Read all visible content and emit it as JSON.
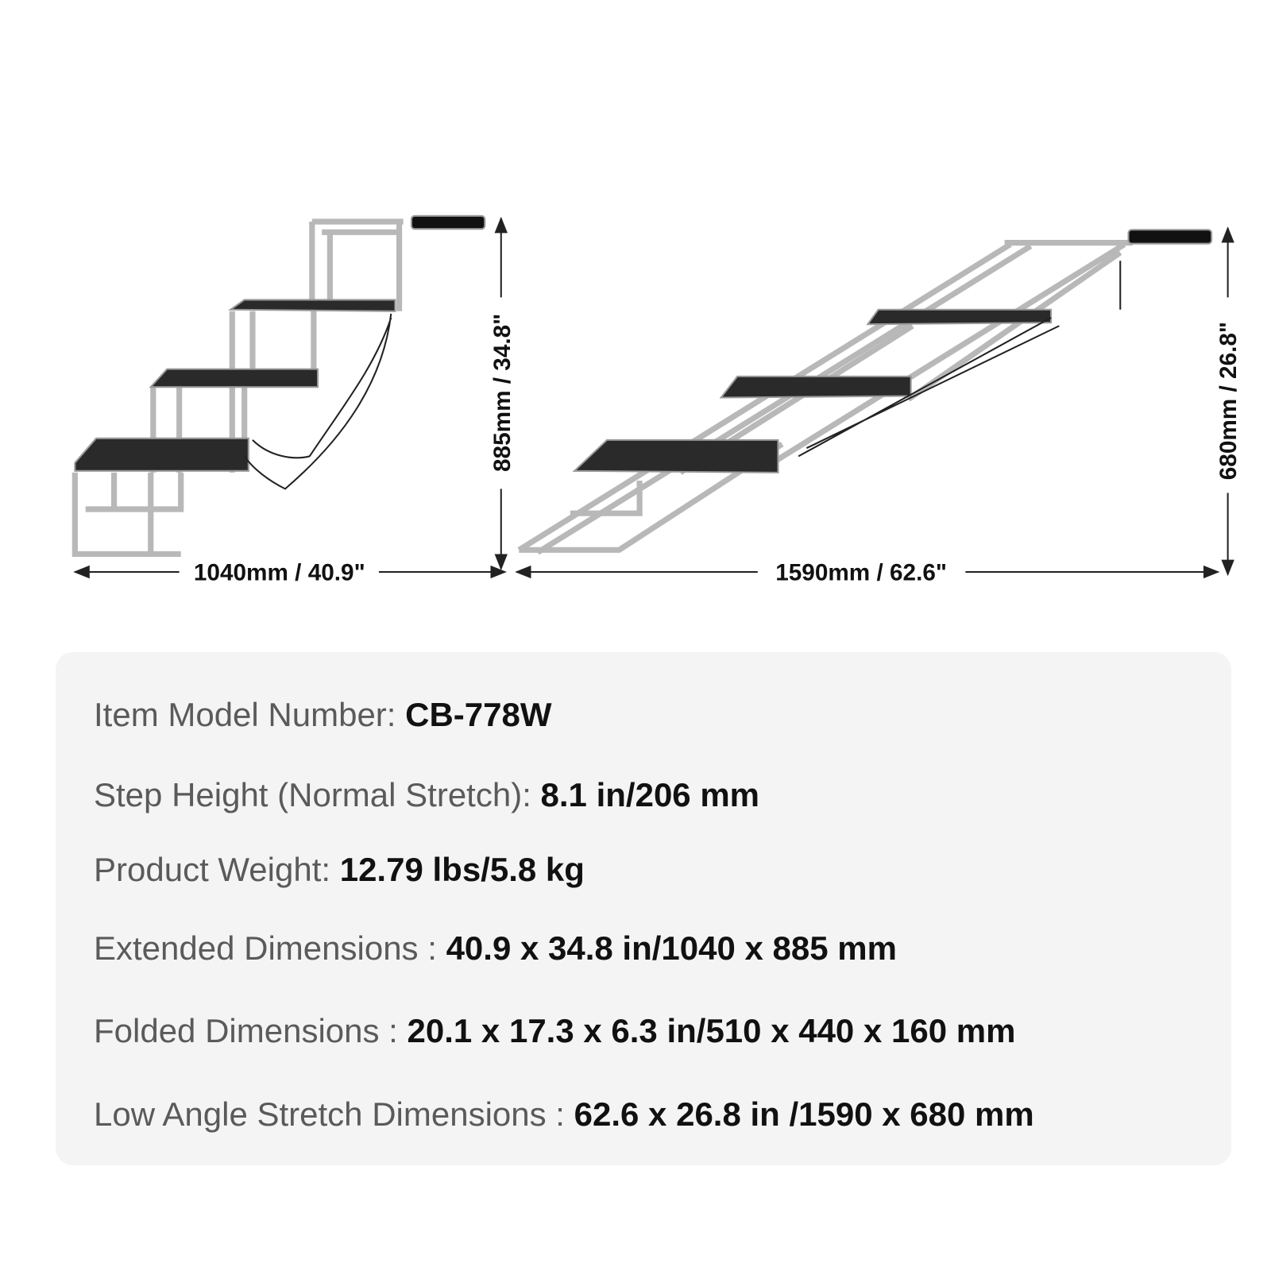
{
  "diagrams": {
    "extended": {
      "width_label": "1040mm / 40.9\"",
      "height_label": "885mm / 34.8\""
    },
    "low_angle": {
      "width_label": "1590mm / 62.6\"",
      "height_label": "680mm / 26.8\""
    }
  },
  "specs": [
    {
      "label": "Item Model Number: ",
      "value": "CB-778W"
    },
    {
      "label": "Step Height (Normal Stretch): ",
      "value": "8.1 in/206 mm"
    },
    {
      "label": "Product Weight: ",
      "value": "12.79 lbs/5.8 kg"
    },
    {
      "label": "Extended Dimensions : ",
      "value": "40.9 x 34.8 in/1040 x 885 mm"
    },
    {
      "label": "Folded Dimensions : ",
      "value": "20.1 x 17.3 x 6.3 in/510 x 440 x 160 mm"
    },
    {
      "label": "Low Angle Stretch Dimensions : ",
      "value": "62.6 x 26.8 in /1590 x 680 mm"
    }
  ],
  "colors": {
    "frame": "#c8c8c8",
    "tread": "#2a2a2a",
    "box": "#f4f4f4"
  }
}
